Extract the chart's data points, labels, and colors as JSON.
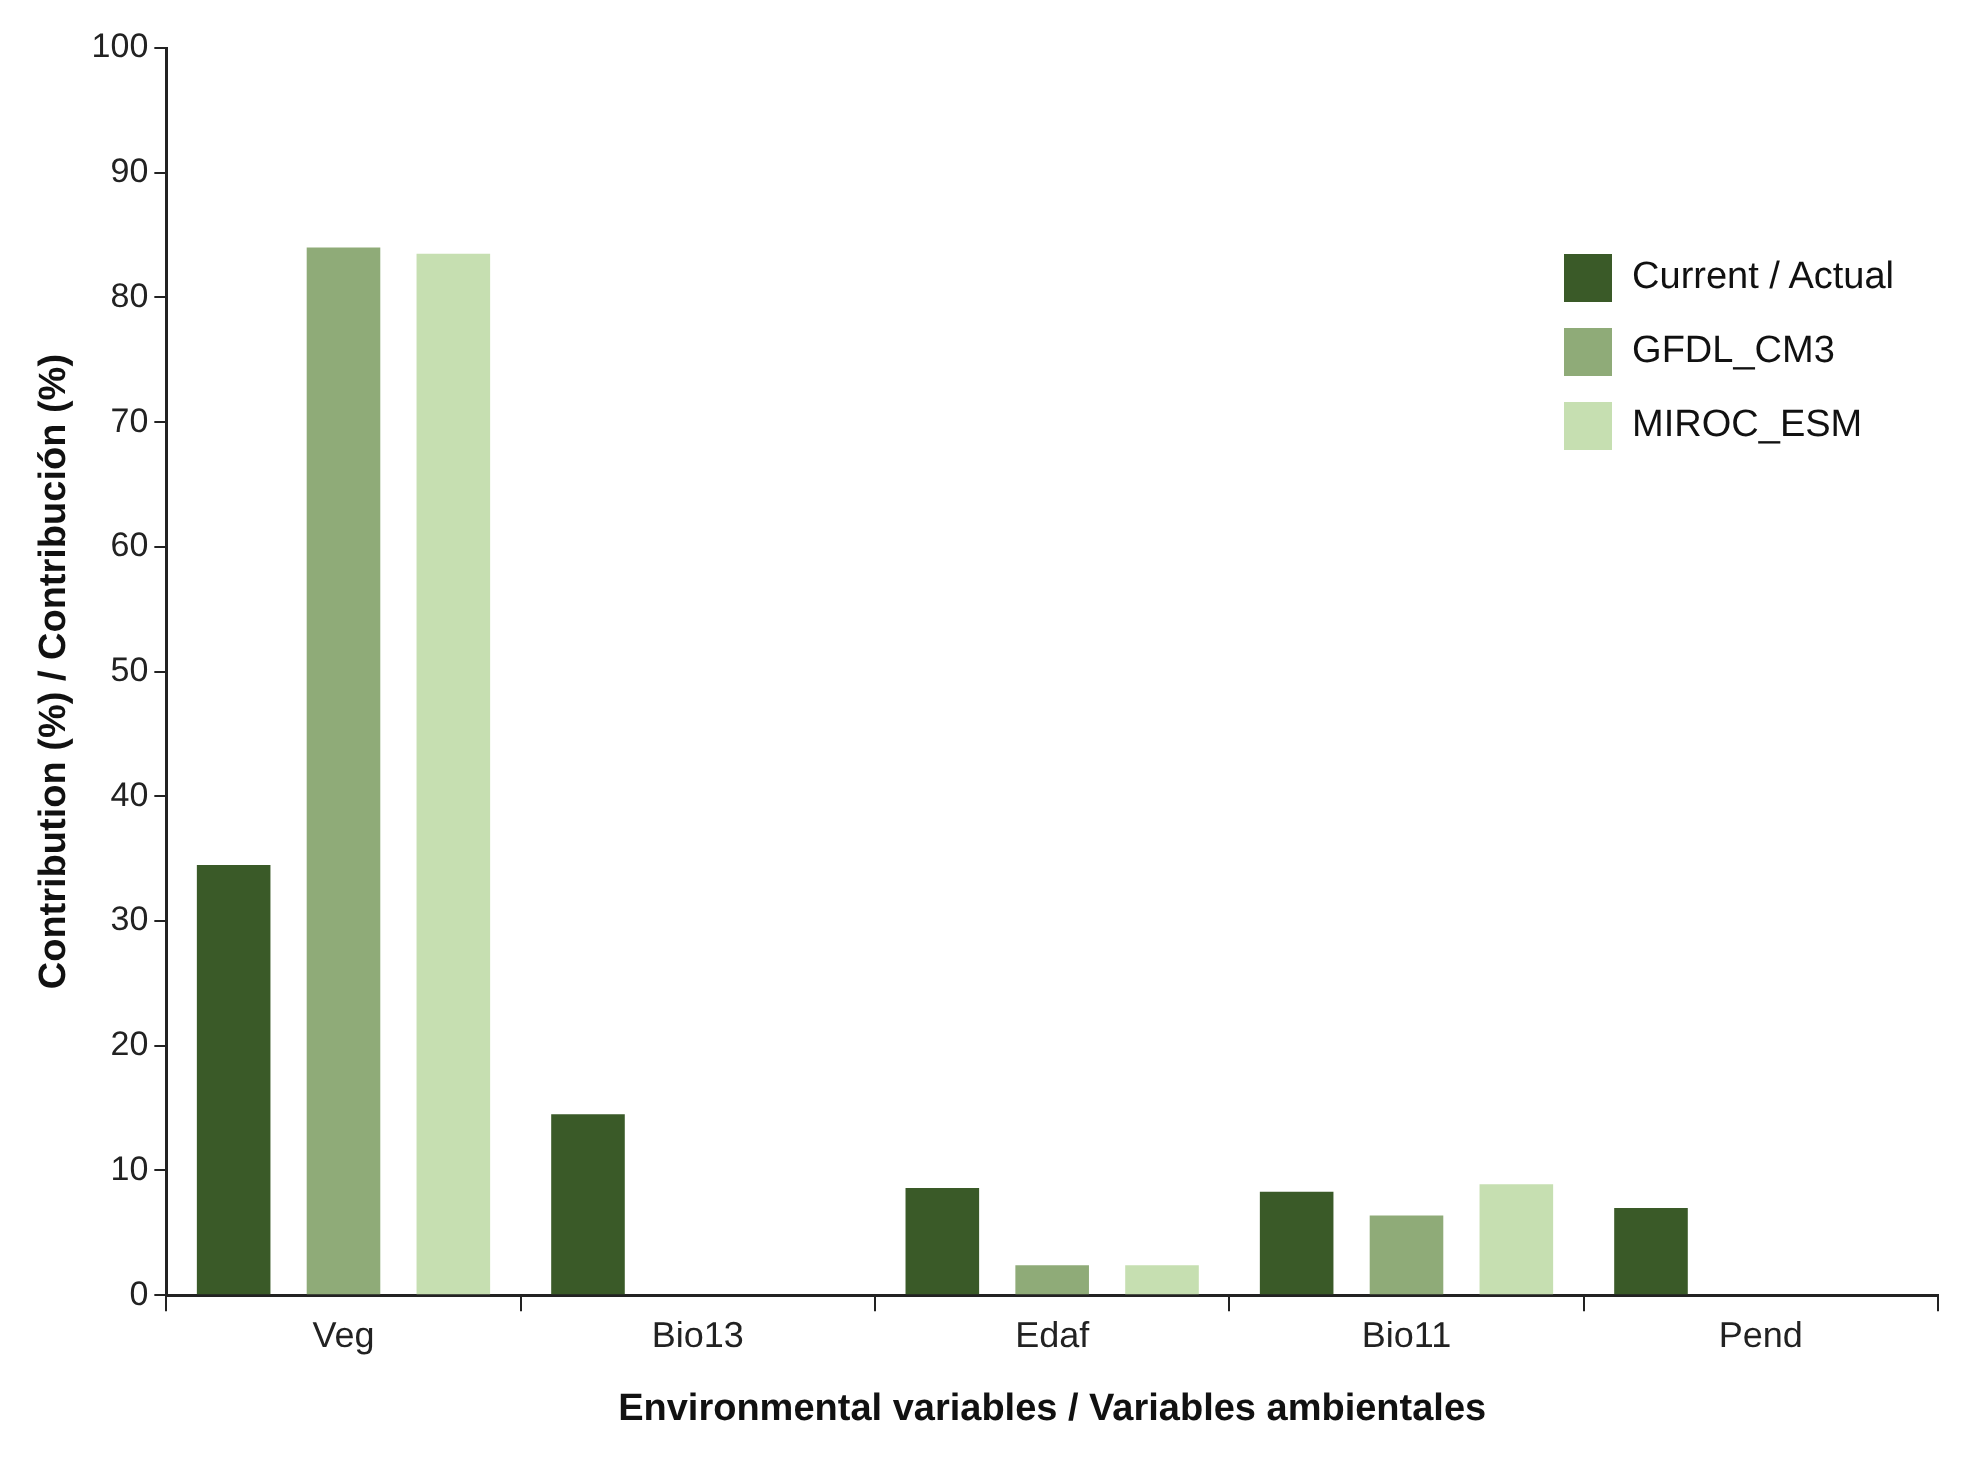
{
  "chart_data": {
    "type": "bar",
    "xlabel": "Environmental variables / Variables ambientales",
    "ylabel": "Contribution (%) / Contribución (%)",
    "categories": [
      "Veg",
      "Bio13",
      "Edaf",
      "Bio11",
      "Pend"
    ],
    "series": [
      {
        "name": "Current / Actual",
        "color": "#3a5a28",
        "values": [
          34.5,
          14.5,
          8.6,
          8.3,
          7.0
        ]
      },
      {
        "name": "GFDL_CM3",
        "color": "#8fab78",
        "values": [
          84.0,
          null,
          2.4,
          6.4,
          null
        ]
      },
      {
        "name": "MIROC_ESM",
        "color": "#c6dfb1",
        "values": [
          83.5,
          null,
          2.4,
          8.9,
          null
        ]
      }
    ],
    "ylim": [
      0,
      100
    ],
    "yticks": [
      0,
      10,
      20,
      30,
      40,
      50,
      60,
      70,
      80,
      90,
      100
    ],
    "grid": false,
    "legend": "top right"
  }
}
